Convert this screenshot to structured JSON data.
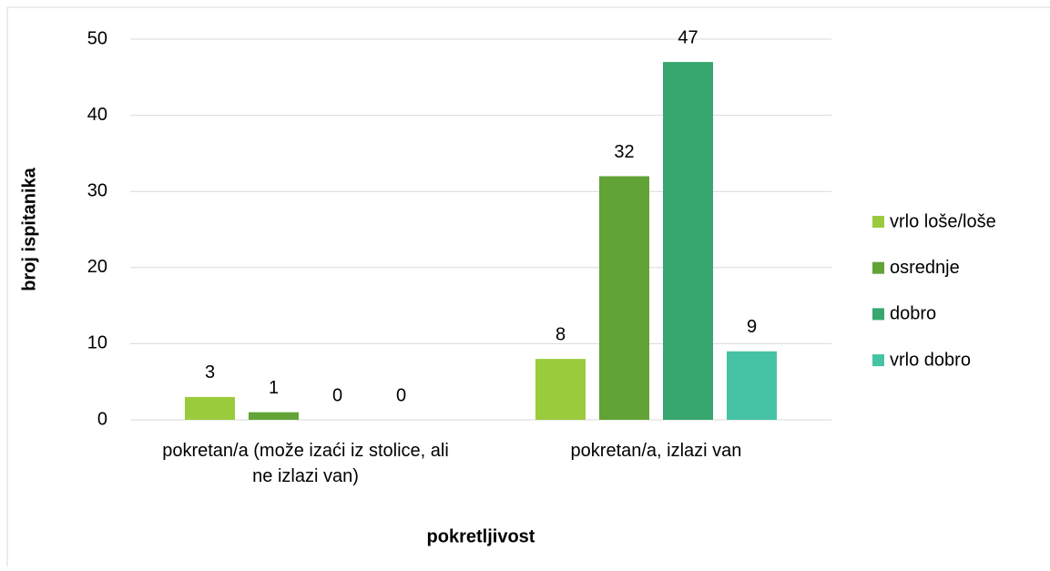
{
  "chart_data": {
    "type": "bar",
    "categories": [
      "pokretan/a (može izaći iz stolice, ali ne izlazi van)",
      "pokretan/a, izlazi van"
    ],
    "series": [
      {
        "name": "vrlo loše/loše",
        "color": "#9acb3c",
        "values": [
          3,
          8
        ]
      },
      {
        "name": "osrednje",
        "color": "#62a337",
        "values": [
          1,
          32
        ]
      },
      {
        "name": "dobro",
        "color": "#37a76f",
        "values": [
          0,
          47
        ]
      },
      {
        "name": "vrlo dobro",
        "color": "#45c3a4",
        "values": [
          0,
          9
        ]
      }
    ],
    "ylim": [
      0,
      50
    ],
    "yticks": [
      0,
      10,
      20,
      30,
      40,
      50
    ],
    "grid": true,
    "xlabel": "pokretljivost",
    "ylabel": "broj ispitanika",
    "legend": "right"
  }
}
